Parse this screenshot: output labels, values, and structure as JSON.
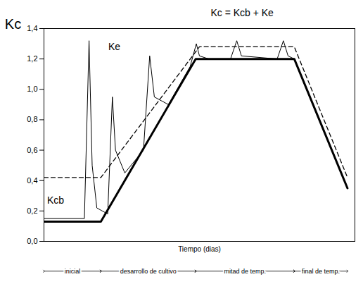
{
  "chart_data": {
    "type": "line",
    "y_label": "Kc",
    "x_label": "Tiempo (dias)",
    "xlim": [
      0,
      100
    ],
    "ylim": [
      0,
      1.4
    ],
    "yticks": [
      {
        "value": 0,
        "label": "0,0"
      },
      {
        "value": 0.2,
        "label": "0,2"
      },
      {
        "value": 0.4,
        "label": "0,4"
      },
      {
        "value": 0.6,
        "label": "0,6"
      },
      {
        "value": 0.8,
        "label": "0,8"
      },
      {
        "value": 1.0,
        "label": "1,0"
      },
      {
        "value": 1.2,
        "label": "1,2"
      },
      {
        "value": 1.4,
        "label": "1,4"
      }
    ],
    "tick_labels": "y",
    "grid": false,
    "series": [
      {
        "name": "Kcb",
        "color": "#000000",
        "line_style": "thick",
        "x": [
          0,
          18.3,
          48.8,
          80.5,
          97.6
        ],
        "values": [
          0.13,
          0.13,
          1.2,
          1.2,
          0.35
        ]
      },
      {
        "name": "Ke",
        "color": "#000000",
        "line_style": "thin",
        "x": [
          0,
          13,
          14.5,
          15.5,
          17,
          20.5,
          22,
          23,
          26,
          32,
          34,
          35.5,
          40,
          47,
          49,
          50,
          53,
          60,
          62,
          63.5,
          75,
          77,
          78.5,
          80.5
        ],
        "values": [
          0.15,
          0.15,
          1.32,
          0.5,
          0.22,
          0.18,
          0.95,
          0.6,
          0.45,
          0.6,
          1.22,
          0.95,
          0.9,
          1.15,
          1.3,
          1.22,
          1.2,
          1.2,
          1.32,
          1.22,
          1.2,
          1.32,
          1.22,
          1.2
        ]
      },
      {
        "name": "Kc = Kcb + Ke",
        "color": "#000000",
        "line_style": "dashed",
        "x": [
          0,
          18.3,
          50,
          80.5,
          97.6
        ],
        "values": [
          0.42,
          0.42,
          1.28,
          1.28,
          0.42
        ]
      }
    ],
    "annotations": [
      {
        "text": "Kcb",
        "x": 1,
        "y": 0.27
      },
      {
        "text": "Ke",
        "x": 20.7,
        "y": 1.28
      },
      {
        "text": "Kc = Kcb + Ke",
        "x": 53.6,
        "y": 1.5
      }
    ],
    "stages": [
      {
        "label": "inicial",
        "start": 0,
        "end": 18.3
      },
      {
        "label": "desarrollo de cultivo",
        "start": 18.3,
        "end": 48.8
      },
      {
        "label": "mitad de temp.",
        "start": 48.8,
        "end": 80.5
      },
      {
        "label": "final de temp.",
        "start": 80.5,
        "end": 97.6
      }
    ]
  }
}
